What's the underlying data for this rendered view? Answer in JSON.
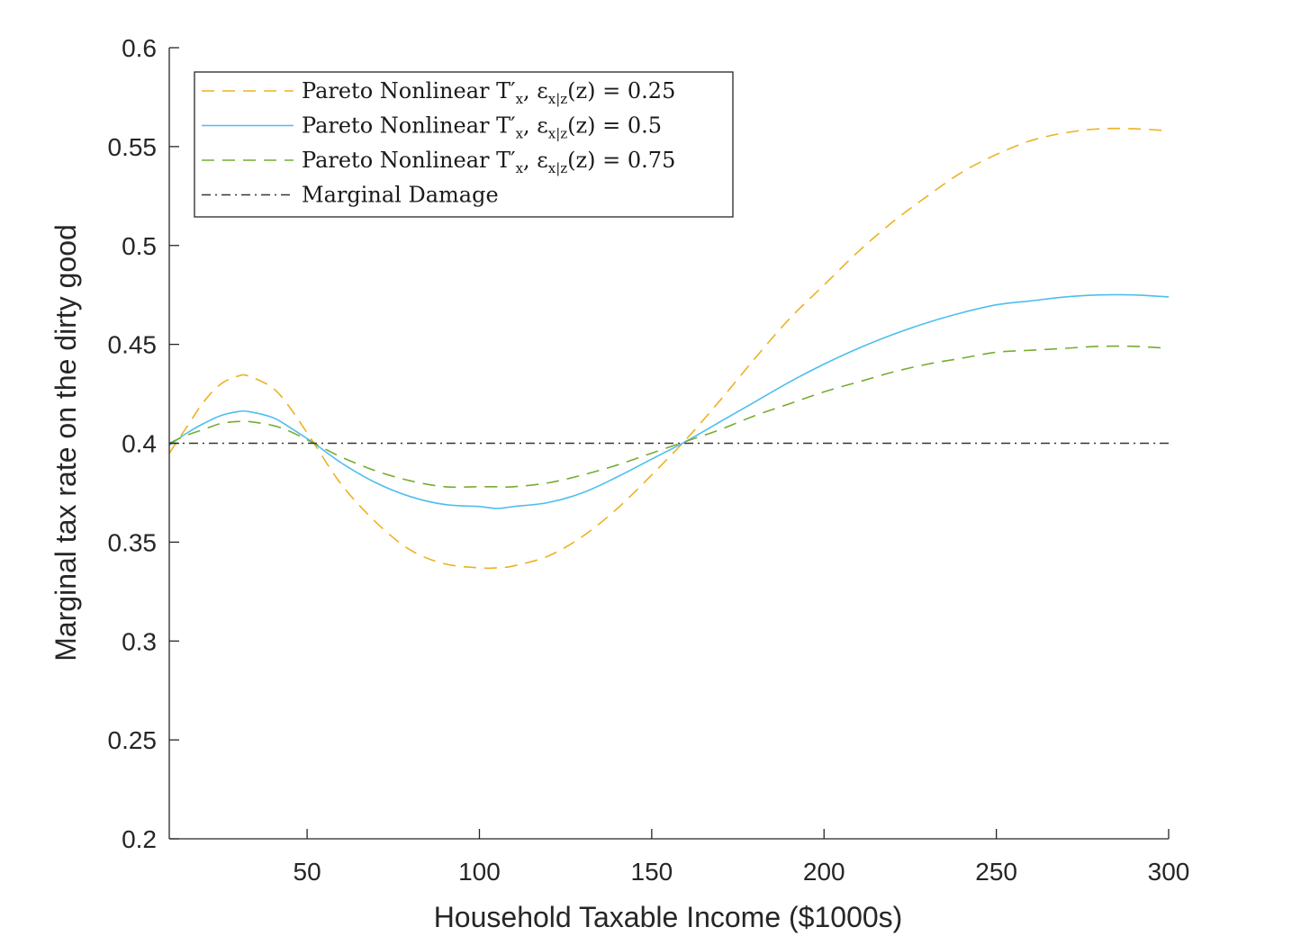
{
  "chart_data": {
    "type": "line",
    "title": "",
    "xlabel": "Household Taxable Income ($1000s)",
    "ylabel": "Marginal tax rate on the dirty good",
    "xlim": [
      10,
      300
    ],
    "ylim": [
      0.2,
      0.6
    ],
    "xticks": [
      50,
      100,
      150,
      200,
      250,
      300
    ],
    "xtick_labels": [
      "50",
      "100",
      "150",
      "200",
      "250",
      "300"
    ],
    "yticks": [
      0.2,
      0.25,
      0.3,
      0.35,
      0.4,
      0.45,
      0.5,
      0.55,
      0.6
    ],
    "ytick_labels": [
      "0.2",
      "0.25",
      "0.3",
      "0.35",
      "0.4",
      "0.45",
      "0.5",
      "0.55",
      "0.6"
    ],
    "grid": false,
    "legend_position": "top-left",
    "series": [
      {
        "name": "Pareto Nonlinear T'x, εx|z(z) = 0.25",
        "legend_main": "Pareto Nonlinear T",
        "legend_rest": "′",
        "legend_sub": "x",
        "legend_tail": ", ε",
        "legend_sub2": "x|z",
        "legend_end": "(z) = 0.25",
        "color": "#EDB120",
        "dash": "14 9",
        "x": [
          10,
          15,
          20,
          25,
          30,
          33,
          40,
          45,
          52,
          60,
          70,
          80,
          90,
          100,
          105,
          110,
          120,
          130,
          140,
          150,
          160,
          170,
          180,
          190,
          200,
          210,
          220,
          230,
          240,
          250,
          260,
          270,
          280,
          290,
          300
        ],
        "y": [
          0.395,
          0.408,
          0.421,
          0.43,
          0.434,
          0.434,
          0.428,
          0.418,
          0.4,
          0.379,
          0.36,
          0.346,
          0.339,
          0.337,
          0.337,
          0.338,
          0.343,
          0.353,
          0.367,
          0.384,
          0.402,
          0.422,
          0.443,
          0.463,
          0.48,
          0.497,
          0.512,
          0.525,
          0.537,
          0.546,
          0.553,
          0.557,
          0.559,
          0.559,
          0.558
        ]
      },
      {
        "name": "Pareto Nonlinear T'x, εx|z(z) = 0.5",
        "legend_main": "Pareto Nonlinear T",
        "legend_rest": "′",
        "legend_sub": "x",
        "legend_tail": ", ε",
        "legend_sub2": "x|z",
        "legend_end": "(z) = 0.5",
        "color": "#4DBEEE",
        "dash": "",
        "x": [
          10,
          15,
          20,
          25,
          30,
          33,
          40,
          45,
          52,
          60,
          70,
          80,
          90,
          100,
          105,
          110,
          120,
          130,
          140,
          150,
          160,
          170,
          180,
          190,
          200,
          210,
          220,
          230,
          240,
          250,
          260,
          270,
          280,
          290,
          300
        ],
        "y": [
          0.399,
          0.405,
          0.41,
          0.414,
          0.416,
          0.416,
          0.413,
          0.408,
          0.4,
          0.39,
          0.38,
          0.373,
          0.369,
          0.368,
          0.367,
          0.368,
          0.37,
          0.375,
          0.383,
          0.392,
          0.401,
          0.411,
          0.421,
          0.431,
          0.44,
          0.448,
          0.455,
          0.461,
          0.466,
          0.47,
          0.472,
          0.474,
          0.475,
          0.475,
          0.474
        ]
      },
      {
        "name": "Pareto Nonlinear T'x, εx|z(z) = 0.75",
        "legend_main": "Pareto Nonlinear T",
        "legend_rest": "′",
        "legend_sub": "x",
        "legend_tail": ", ε",
        "legend_sub2": "x|z",
        "legend_end": "(z) = 0.75",
        "color": "#77AC30",
        "dash": "14 9",
        "x": [
          10,
          15,
          20,
          25,
          30,
          33,
          40,
          45,
          52,
          60,
          70,
          80,
          90,
          100,
          105,
          110,
          120,
          130,
          140,
          150,
          160,
          170,
          180,
          190,
          200,
          210,
          220,
          230,
          240,
          250,
          260,
          270,
          280,
          290,
          300
        ],
        "y": [
          0.4,
          0.404,
          0.407,
          0.41,
          0.411,
          0.411,
          0.409,
          0.406,
          0.4,
          0.393,
          0.386,
          0.381,
          0.378,
          0.378,
          0.378,
          0.378,
          0.38,
          0.384,
          0.389,
          0.395,
          0.401,
          0.407,
          0.414,
          0.42,
          0.426,
          0.431,
          0.436,
          0.44,
          0.443,
          0.446,
          0.447,
          0.448,
          0.449,
          0.449,
          0.448
        ]
      },
      {
        "name": "Marginal Damage",
        "legend_main": "Marginal Damage",
        "color": "#333333",
        "dash": "10 5 2 5",
        "x": [
          10,
          300
        ],
        "y": [
          0.4,
          0.4
        ]
      }
    ]
  }
}
